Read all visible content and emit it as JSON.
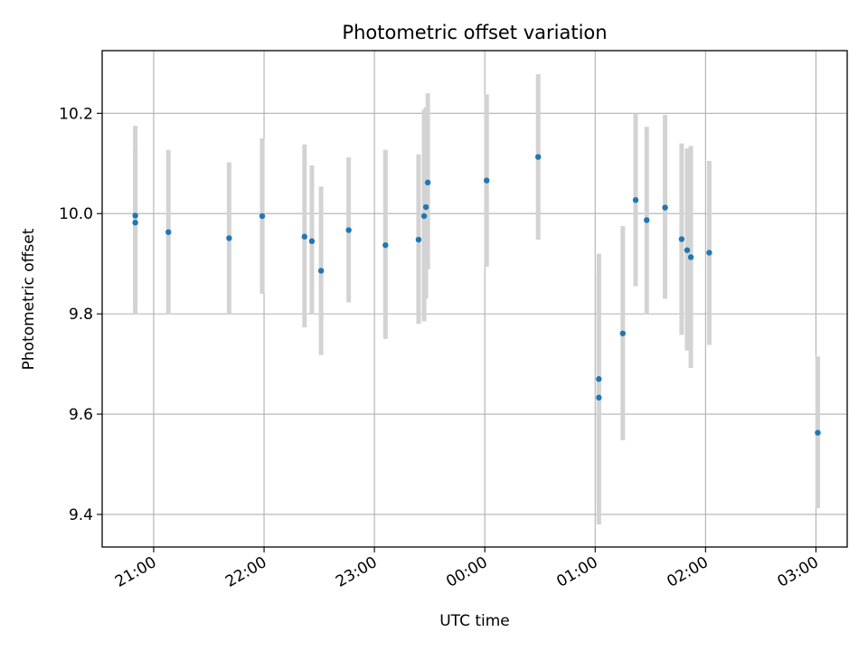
{
  "chart_data": {
    "type": "scatter",
    "title": "Photometric offset variation",
    "xlabel": "UTC time",
    "ylabel": "Photometric offset",
    "grid": true,
    "x_tick_labels": [
      "21:00",
      "22:00",
      "23:00",
      "00:00",
      "01:00",
      "02:00",
      "03:00"
    ],
    "y_tick_labels": [
      "9.4",
      "9.6",
      "9.8",
      "10.0",
      "10.2"
    ],
    "x_unit": "UTC time",
    "xlim": [
      "20:32",
      "03:17"
    ],
    "ylim": [
      9.335,
      10.325
    ],
    "colors": {
      "point": "#1f77b4",
      "errorbar": "#d3d3d3",
      "grid": "#b0b0b0"
    },
    "points": [
      {
        "x": "20:50",
        "y": 9.996,
        "low": 9.82,
        "high": 10.175
      },
      {
        "x": "20:50",
        "y": 9.982,
        "low": 9.8,
        "high": 10.13
      },
      {
        "x": "21:08",
        "y": 9.963,
        "low": 9.8,
        "high": 10.127
      },
      {
        "x": "21:41",
        "y": 9.951,
        "low": 9.8,
        "high": 10.102
      },
      {
        "x": "21:59",
        "y": 9.995,
        "low": 9.84,
        "high": 10.15
      },
      {
        "x": "22:22",
        "y": 9.954,
        "low": 9.773,
        "high": 10.138
      },
      {
        "x": "22:26",
        "y": 9.945,
        "low": 9.8,
        "high": 10.096
      },
      {
        "x": "22:31",
        "y": 9.886,
        "low": 9.718,
        "high": 10.054
      },
      {
        "x": "22:46",
        "y": 9.967,
        "low": 9.823,
        "high": 10.112
      },
      {
        "x": "23:06",
        "y": 9.937,
        "low": 9.75,
        "high": 10.127
      },
      {
        "x": "23:24",
        "y": 9.948,
        "low": 9.78,
        "high": 10.118
      },
      {
        "x": "23:27",
        "y": 9.995,
        "low": 9.785,
        "high": 10.207
      },
      {
        "x": "23:28",
        "y": 10.013,
        "low": 9.83,
        "high": 10.212
      },
      {
        "x": "23:29",
        "y": 10.062,
        "low": 9.889,
        "high": 10.24
      },
      {
        "x": "00:01",
        "y": 10.066,
        "low": 9.894,
        "high": 10.238
      },
      {
        "x": "00:29",
        "y": 10.113,
        "low": 9.948,
        "high": 10.278
      },
      {
        "x": "01:02",
        "y": 9.67,
        "low": 9.42,
        "high": 9.92
      },
      {
        "x": "01:02",
        "y": 9.633,
        "low": 9.38,
        "high": 9.88
      },
      {
        "x": "01:15",
        "y": 9.761,
        "low": 9.548,
        "high": 9.975
      },
      {
        "x": "01:22",
        "y": 10.027,
        "low": 9.855,
        "high": 10.2
      },
      {
        "x": "01:28",
        "y": 9.987,
        "low": 9.8,
        "high": 10.173
      },
      {
        "x": "01:38",
        "y": 10.012,
        "low": 9.83,
        "high": 10.197
      },
      {
        "x": "01:47",
        "y": 9.949,
        "low": 9.758,
        "high": 10.14
      },
      {
        "x": "01:50",
        "y": 9.927,
        "low": 9.727,
        "high": 10.13
      },
      {
        "x": "01:52",
        "y": 9.913,
        "low": 9.692,
        "high": 10.135
      },
      {
        "x": "02:02",
        "y": 9.922,
        "low": 9.738,
        "high": 10.105
      },
      {
        "x": "03:01",
        "y": 9.563,
        "low": 9.412,
        "high": 9.715
      }
    ]
  }
}
